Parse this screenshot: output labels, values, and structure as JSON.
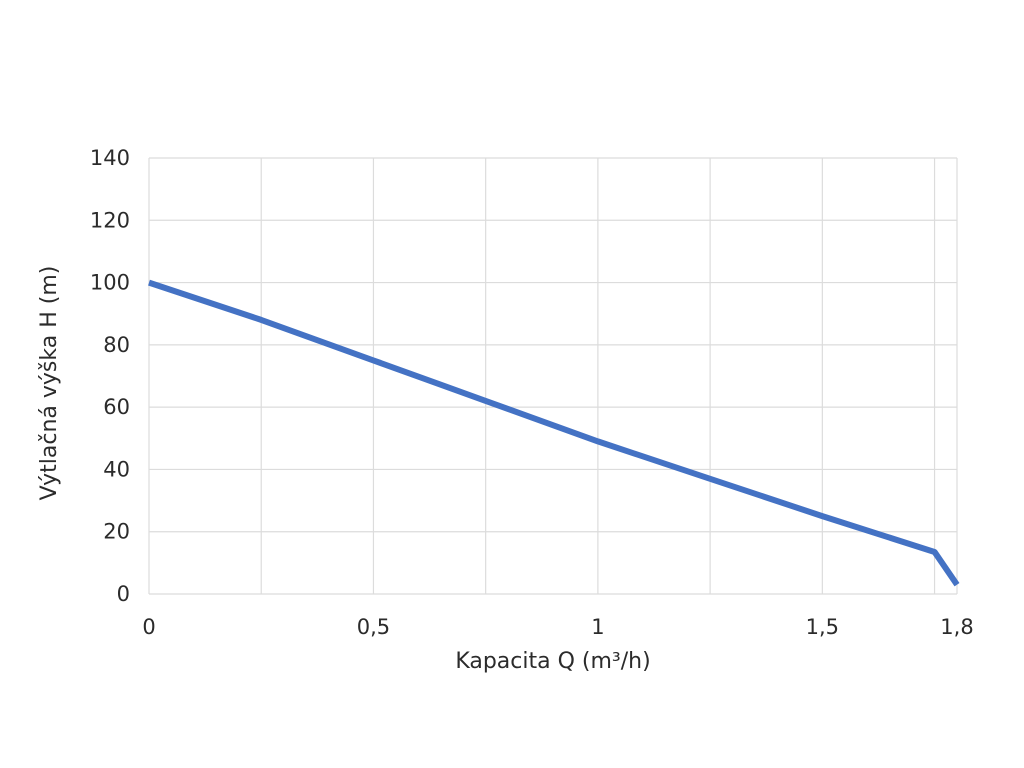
{
  "chart_data": {
    "type": "line",
    "title": "",
    "xlabel": "Kapacita Q (m³/h)",
    "ylabel": "Výtlačná výška H (m)",
    "xlim": [
      0,
      1.8
    ],
    "ylim": [
      0,
      140
    ],
    "x_ticks": [
      0,
      0.5,
      1,
      1.5,
      1.8
    ],
    "x_tick_labels": [
      "0",
      "0,5",
      "1",
      "1,5",
      "1,8"
    ],
    "x_grid": [
      0,
      0.25,
      0.5,
      0.75,
      1,
      1.25,
      1.5,
      1.75,
      1.8
    ],
    "y_ticks": [
      0,
      20,
      40,
      60,
      80,
      100,
      120,
      140
    ],
    "y_tick_labels": [
      "0",
      "20",
      "40",
      "60",
      "80",
      "100",
      "120",
      "140"
    ],
    "grid": true,
    "legend": "none",
    "series": [
      {
        "color": "#4472c4",
        "x": [
          0,
          0.25,
          0.5,
          0.75,
          1,
          1.25,
          1.5,
          1.75,
          1.8
        ],
        "y": [
          100,
          88,
          75,
          62,
          49,
          37,
          25,
          13.5,
          3
        ]
      }
    ]
  }
}
